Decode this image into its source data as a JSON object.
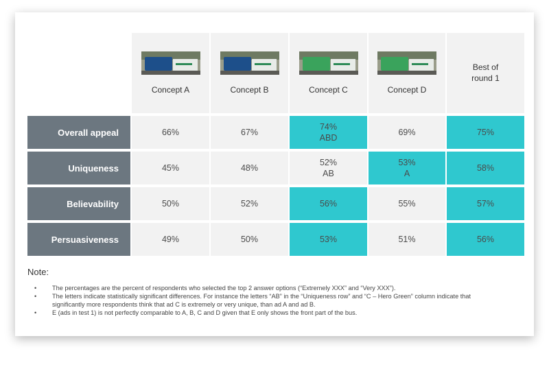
{
  "concepts": [
    {
      "label": "Concept A",
      "bus_color": "#1d4f8a"
    },
    {
      "label": "Concept B",
      "bus_color": "#1d4f8a"
    },
    {
      "label": "Concept C",
      "bus_color": "#3aa35c"
    },
    {
      "label": "Concept D",
      "bus_color": "#3aa35c"
    }
  ],
  "best_of_round": "Best of round 1",
  "highlight_color": "#2fc8cf",
  "rows": [
    {
      "label": "Overall appeal",
      "cells": [
        {
          "value": "66%",
          "sig": ""
        },
        {
          "value": "67%",
          "sig": ""
        },
        {
          "value": "74%",
          "sig": "ABD",
          "highlight": true
        },
        {
          "value": "69%",
          "sig": ""
        },
        {
          "value": "75%",
          "sig": "",
          "highlight": true
        }
      ]
    },
    {
      "label": "Uniqueness",
      "cells": [
        {
          "value": "45%",
          "sig": ""
        },
        {
          "value": "48%",
          "sig": ""
        },
        {
          "value": "52%",
          "sig": "AB"
        },
        {
          "value": "53%",
          "sig": "A",
          "highlight": true
        },
        {
          "value": "58%",
          "sig": "",
          "highlight": true
        }
      ]
    },
    {
      "label": "Believability",
      "cells": [
        {
          "value": "50%",
          "sig": ""
        },
        {
          "value": "52%",
          "sig": ""
        },
        {
          "value": "56%",
          "sig": "",
          "highlight": true
        },
        {
          "value": "55%",
          "sig": ""
        },
        {
          "value": "57%",
          "sig": "",
          "highlight": true
        }
      ]
    },
    {
      "label": "Persuasiveness",
      "cells": [
        {
          "value": "49%",
          "sig": ""
        },
        {
          "value": "50%",
          "sig": ""
        },
        {
          "value": "53%",
          "sig": "",
          "highlight": true
        },
        {
          "value": "51%",
          "sig": ""
        },
        {
          "value": "56%",
          "sig": "",
          "highlight": true
        }
      ]
    }
  ],
  "note": {
    "title": "Note:",
    "bullet": "•",
    "items": [
      "The percentages are the percent of respondents who selected the top 2 answer options (“Extremely XXX” and “Very XXX”).",
      "The letters indicate statistically significant differences. For instance the letters “AB” in the “Uniqueness row” and “C – Hero Green” column indicate that significantly more respondents think that ad C is extremely or very unique, than ad A and ad B.",
      "E (ads in test 1) is not perfectly comparable to A, B, C and D given that E only shows the front part of the bus."
    ]
  }
}
